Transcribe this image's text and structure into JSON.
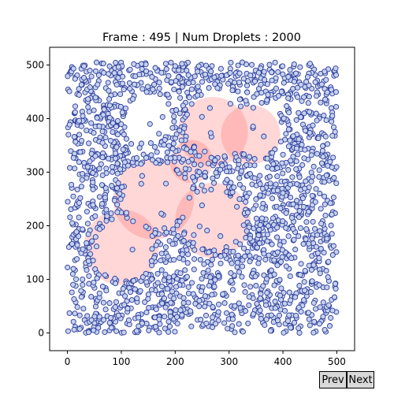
{
  "chart_data": {
    "type": "scatter",
    "title": "Frame : 495 | Num Droplets : 2000",
    "xlim": [
      -33,
      533
    ],
    "ylim": [
      -33,
      533
    ],
    "x_ticks": [
      0,
      100,
      200,
      300,
      400,
      500
    ],
    "y_ticks": [
      0,
      100,
      200,
      300,
      400,
      500
    ],
    "grid": false,
    "marker_face_color": "#c6d2ee",
    "marker_edge_color": "#2a3a9a",
    "region_color": "#ff6666",
    "num_points": 2000,
    "point_extent": {
      "x": [
        0,
        500
      ],
      "y": [
        0,
        505
      ]
    },
    "regions": [
      {
        "x": 270,
        "y": 375,
        "r": 65
      },
      {
        "x": 340,
        "y": 370,
        "r": 55
      },
      {
        "x": 160,
        "y": 250,
        "r": 75
      },
      {
        "x": 270,
        "y": 210,
        "r": 70
      },
      {
        "x": 100,
        "y": 160,
        "r": 70
      },
      {
        "x": 230,
        "y": 320,
        "r": 40
      }
    ],
    "voids": [
      {
        "x": 150,
        "y": 400,
        "r": 45
      },
      {
        "x": 280,
        "y": 390,
        "r": 60
      },
      {
        "x": 350,
        "y": 380,
        "r": 50
      },
      {
        "x": 165,
        "y": 255,
        "r": 60
      },
      {
        "x": 270,
        "y": 210,
        "r": 55
      },
      {
        "x": 105,
        "y": 155,
        "r": 55
      }
    ]
  },
  "controls": {
    "prev_label": "Prev",
    "next_label": "Next"
  }
}
